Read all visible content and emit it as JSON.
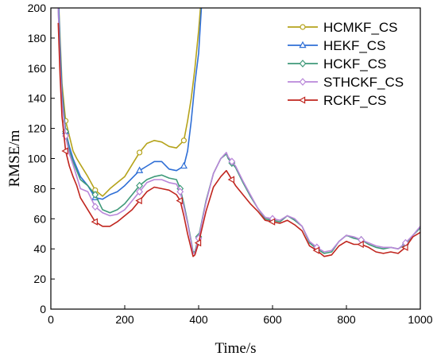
{
  "chart_data": {
    "type": "line",
    "xlabel": "Time/s",
    "ylabel": "RMSE/m",
    "xlim": [
      0,
      1000
    ],
    "ylim": [
      0,
      200
    ],
    "xticks": [
      0,
      200,
      400,
      600,
      800,
      1000
    ],
    "yticks": [
      0,
      20,
      40,
      60,
      80,
      100,
      120,
      140,
      160,
      180,
      200
    ],
    "grid": false,
    "legend_position": "top-right",
    "series": [
      {
        "name": "HCMKF_CS",
        "color": "#b5a31b",
        "marker": "circle",
        "x": [
          20,
          25,
          30,
          40,
          50,
          60,
          70,
          80,
          100,
          120,
          140,
          160,
          180,
          200,
          220,
          240,
          260,
          280,
          300,
          320,
          340,
          360,
          370,
          380,
          390,
          400,
          405,
          410
        ],
        "y": [
          210,
          180,
          150,
          125,
          115,
          105,
          100,
          96,
          88,
          79,
          75,
          80,
          84,
          88,
          96,
          104,
          110,
          112,
          111,
          108,
          107,
          112,
          125,
          140,
          160,
          185,
          200,
          215
        ]
      },
      {
        "name": "HEKF_CS",
        "color": "#2f6fd6",
        "marker": "triangle",
        "x": [
          20,
          25,
          30,
          40,
          50,
          60,
          70,
          80,
          100,
          120,
          140,
          160,
          180,
          200,
          220,
          240,
          260,
          280,
          300,
          320,
          340,
          360,
          370,
          380,
          390,
          400,
          405,
          410
        ],
        "y": [
          210,
          175,
          145,
          118,
          108,
          100,
          94,
          88,
          82,
          74,
          73,
          76,
          78,
          82,
          87,
          92,
          95,
          98,
          98,
          93,
          92,
          95,
          105,
          125,
          150,
          170,
          190,
          210
        ]
      },
      {
        "name": "HCKF_CS",
        "color": "#3f9a7a",
        "marker": "diamond",
        "x": [
          20,
          25,
          30,
          40,
          50,
          60,
          70,
          80,
          100,
          120,
          140,
          160,
          180,
          200,
          220,
          240,
          260,
          280,
          300,
          320,
          340,
          350,
          360,
          370,
          380,
          385,
          390,
          400,
          420,
          440,
          460,
          475,
          480,
          490,
          500,
          520,
          540,
          560,
          580,
          600,
          620,
          640,
          660,
          680,
          700,
          720,
          740,
          760,
          780,
          800,
          820,
          840,
          860,
          880,
          900,
          920,
          940,
          960,
          980,
          1000
        ],
        "y": [
          200,
          165,
          140,
          118,
          105,
          98,
          92,
          86,
          82,
          76,
          66,
          64,
          66,
          70,
          76,
          82,
          86,
          88,
          89,
          87,
          86,
          80,
          70,
          58,
          45,
          38,
          38,
          48,
          72,
          90,
          100,
          103,
          100,
          97,
          94,
          84,
          75,
          67,
          60,
          59,
          58,
          62,
          59,
          55,
          44,
          40,
          37,
          38,
          45,
          49,
          47,
          46,
          43,
          41,
          40,
          41,
          40,
          43,
          49,
          54
        ]
      },
      {
        "name": "STHCKF_CS",
        "color": "#b987d9",
        "marker": "diamond",
        "x": [
          20,
          25,
          30,
          40,
          50,
          60,
          70,
          80,
          100,
          120,
          140,
          160,
          180,
          200,
          220,
          240,
          260,
          280,
          300,
          320,
          340,
          350,
          360,
          370,
          380,
          385,
          390,
          400,
          420,
          440,
          460,
          475,
          480,
          490,
          500,
          520,
          540,
          560,
          580,
          600,
          620,
          640,
          660,
          680,
          700,
          720,
          740,
          760,
          780,
          800,
          820,
          840,
          860,
          880,
          900,
          920,
          940,
          960,
          980,
          1000
        ],
        "y": [
          200,
          162,
          138,
          115,
          103,
          96,
          88,
          80,
          78,
          68,
          64,
          62,
          63,
          66,
          72,
          78,
          84,
          86,
          86,
          84,
          83,
          78,
          68,
          57,
          44,
          37,
          37,
          47,
          71,
          90,
          100,
          104,
          101,
          98,
          95,
          85,
          76,
          67,
          61,
          60,
          59,
          62,
          60,
          55,
          45,
          41,
          38,
          39,
          45,
          49,
          48,
          46,
          44,
          42,
          41,
          41,
          40,
          44,
          49,
          55
        ]
      },
      {
        "name": "RCKF_CS",
        "color": "#c0251e",
        "marker": "triangle-left",
        "x": [
          20,
          25,
          30,
          40,
          50,
          60,
          70,
          80,
          100,
          120,
          140,
          160,
          180,
          200,
          220,
          240,
          260,
          280,
          300,
          320,
          340,
          350,
          360,
          370,
          380,
          385,
          390,
          400,
          420,
          440,
          460,
          475,
          480,
          490,
          500,
          520,
          540,
          560,
          580,
          600,
          620,
          640,
          660,
          680,
          700,
          720,
          740,
          760,
          780,
          800,
          820,
          840,
          860,
          880,
          900,
          920,
          940,
          960,
          980,
          1000
        ],
        "y": [
          190,
          155,
          128,
          105,
          95,
          88,
          82,
          74,
          66,
          58,
          55,
          55,
          58,
          62,
          66,
          72,
          78,
          81,
          80,
          79,
          76,
          72,
          62,
          50,
          40,
          35,
          36,
          44,
          65,
          81,
          88,
          92,
          90,
          86,
          82,
          76,
          70,
          65,
          59,
          58,
          57,
          59,
          56,
          52,
          42,
          39,
          35,
          36,
          42,
          45,
          43,
          43,
          41,
          38,
          37,
          38,
          37,
          41,
          48,
          51
        ]
      }
    ]
  }
}
